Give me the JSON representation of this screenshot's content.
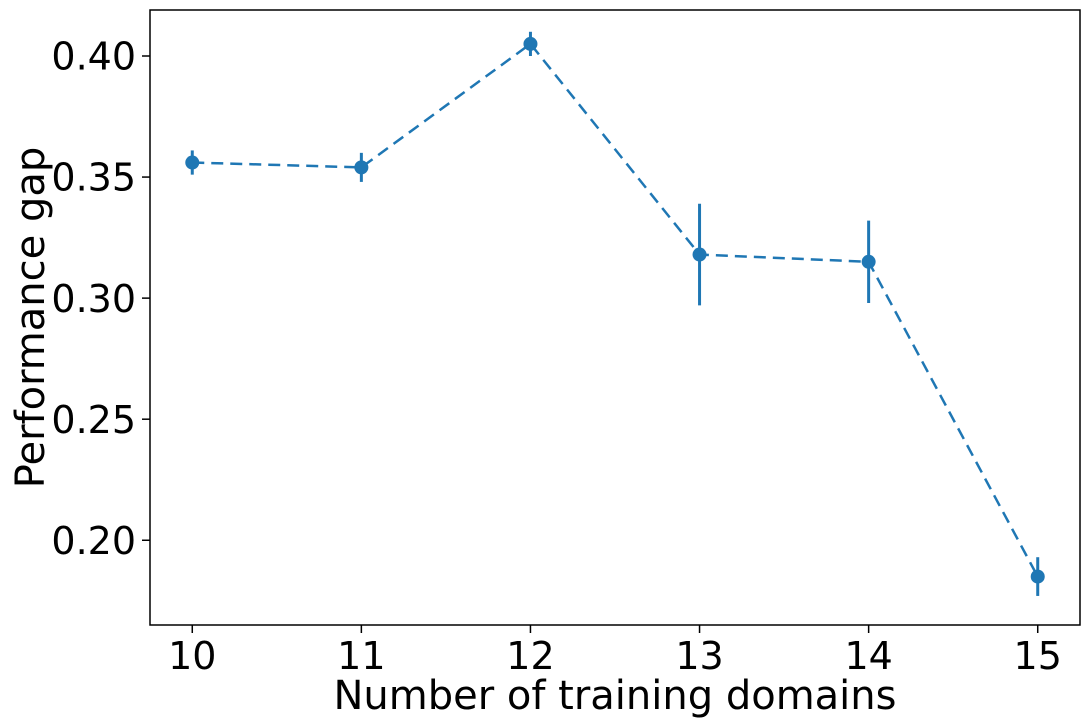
{
  "chart_data": {
    "type": "line",
    "title": "",
    "xlabel": "Number of training domains",
    "ylabel": "Performance gap",
    "x": [
      10,
      11,
      12,
      13,
      14,
      15
    ],
    "series": [
      {
        "name": "performance-gap",
        "values": [
          0.356,
          0.354,
          0.405,
          0.318,
          0.315,
          0.185
        ],
        "yerr": [
          0.005,
          0.006,
          0.005,
          0.021,
          0.017,
          0.008
        ]
      }
    ],
    "x_tick_labels": [
      "10",
      "11",
      "12",
      "13",
      "14",
      "15"
    ],
    "x_tick_values": [
      10,
      11,
      12,
      13,
      14,
      15
    ],
    "y_tick_labels": [
      "0.20",
      "0.25",
      "0.30",
      "0.35",
      "0.40"
    ],
    "y_tick_values": [
      0.2,
      0.25,
      0.3,
      0.35,
      0.4
    ],
    "xlim": [
      9.75,
      15.25
    ],
    "ylim": [
      0.165,
      0.419
    ],
    "grid": false,
    "legend": null,
    "line_style": "dashed",
    "marker": "circle",
    "line_color": "#1f77b4",
    "axis_color": "#000000",
    "background_color": "#ffffff"
  }
}
